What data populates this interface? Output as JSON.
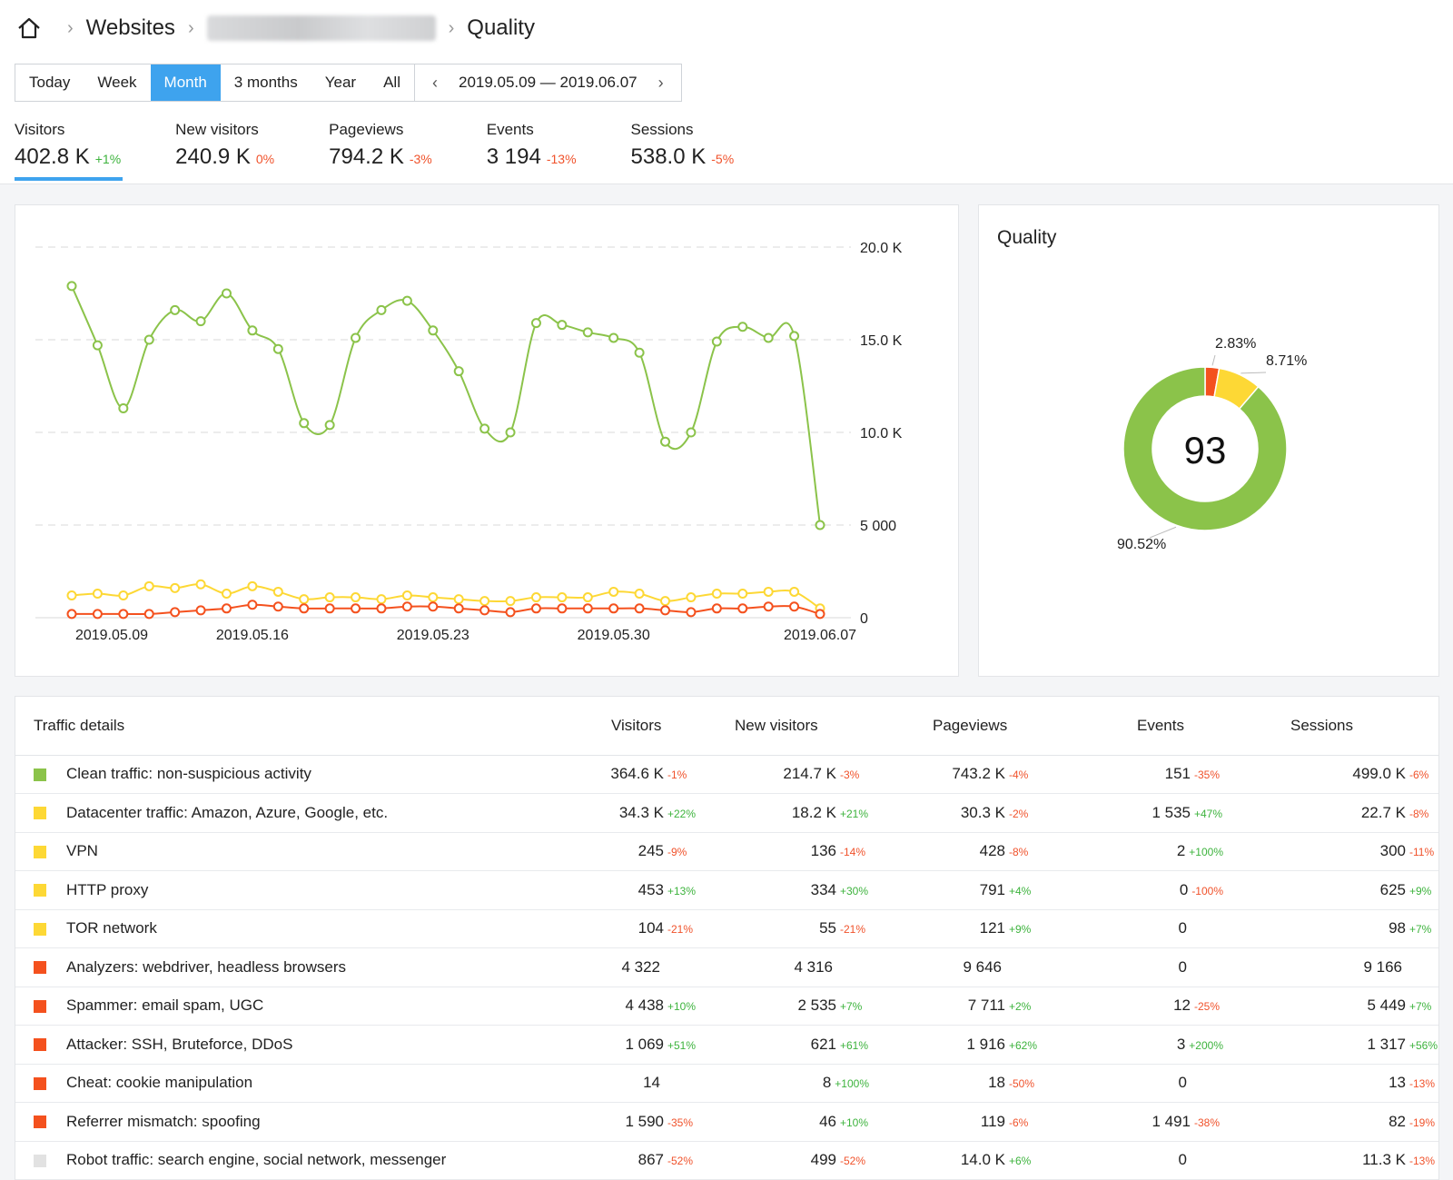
{
  "breadcrumb": {
    "websites": "Websites",
    "current": "Quality"
  },
  "periods": {
    "today": "Today",
    "week": "Week",
    "month": "Month",
    "three_months": "3 months",
    "year": "Year",
    "all": "All",
    "range": "2019.05.09 — 2019.06.07"
  },
  "metrics": [
    {
      "label": "Visitors",
      "value": "402.8 K",
      "delta": "+1%",
      "trend": "pos"
    },
    {
      "label": "New visitors",
      "value": "240.9 K",
      "delta": "0%",
      "trend": "neg"
    },
    {
      "label": "Pageviews",
      "value": "794.2 K",
      "delta": "-3%",
      "trend": "neg"
    },
    {
      "label": "Events",
      "value": "3 194",
      "delta": "-13%",
      "trend": "neg"
    },
    {
      "label": "Sessions",
      "value": "538.0 K",
      "delta": "-5%",
      "trend": "neg"
    }
  ],
  "colors": {
    "accent": "#3ea3ee",
    "green": "#8bc34a",
    "yellow": "#fdd835",
    "red": "#f4511e",
    "grey": "#e2e2e2"
  },
  "chart_data": [
    {
      "type": "line",
      "x": [
        "2019.05.09",
        "2019.05.10",
        "2019.05.11",
        "2019.05.12",
        "2019.05.13",
        "2019.05.14",
        "2019.05.15",
        "2019.05.16",
        "2019.05.17",
        "2019.05.18",
        "2019.05.19",
        "2019.05.20",
        "2019.05.21",
        "2019.05.22",
        "2019.05.23",
        "2019.05.24",
        "2019.05.25",
        "2019.05.26",
        "2019.05.27",
        "2019.05.28",
        "2019.05.29",
        "2019.05.30",
        "2019.05.31",
        "2019.06.01",
        "2019.06.02",
        "2019.06.03",
        "2019.06.04",
        "2019.06.05",
        "2019.06.06",
        "2019.06.07"
      ],
      "xticks": [
        "2019.05.09",
        "2019.05.16",
        "2019.05.23",
        "2019.05.30",
        "2019.06.07"
      ],
      "yticks": [
        "20.0 K",
        "15.0 K",
        "10.0 K",
        "5 000",
        "0"
      ],
      "ylim": [
        0,
        20000
      ],
      "series": [
        {
          "color": "#8bc34a",
          "values": [
            17900,
            14700,
            11300,
            15000,
            16600,
            16000,
            17500,
            15500,
            14500,
            10500,
            10400,
            15100,
            16600,
            17100,
            15500,
            13300,
            10200,
            10000,
            15900,
            15800,
            15400,
            15100,
            14300,
            9500,
            10000,
            14900,
            15700,
            15100,
            15200,
            5000
          ]
        },
        {
          "color": "#fdd835",
          "values": [
            1200,
            1300,
            1200,
            1700,
            1600,
            1800,
            1300,
            1700,
            1400,
            1000,
            1100,
            1100,
            1000,
            1200,
            1100,
            1000,
            900,
            900,
            1100,
            1100,
            1100,
            1400,
            1300,
            900,
            1100,
            1300,
            1300,
            1400,
            1400,
            500
          ]
        },
        {
          "color": "#f4511e",
          "values": [
            200,
            200,
            200,
            200,
            300,
            400,
            500,
            700,
            600,
            500,
            500,
            500,
            500,
            600,
            600,
            500,
            400,
            300,
            500,
            500,
            500,
            500,
            500,
            400,
            300,
            500,
            500,
            600,
            600,
            200
          ]
        }
      ]
    },
    {
      "type": "pie",
      "title": "Quality",
      "center_value": "93",
      "slices": [
        {
          "label": "2.83%",
          "value": 2.83,
          "color": "#f4511e"
        },
        {
          "label": "8.71%",
          "value": 8.71,
          "color": "#fdd835"
        },
        {
          "label": "90.52%",
          "value": 90.52,
          "color": "#8bc34a"
        }
      ]
    }
  ],
  "table": {
    "title": "Traffic details",
    "columns": [
      "Visitors",
      "New visitors",
      "Pageviews",
      "Events",
      "Sessions"
    ],
    "rows": [
      {
        "color": "#8bc34a",
        "label": "Clean traffic: non-suspicious activity",
        "cells": [
          [
            "364.6 K",
            "-1%",
            "neg"
          ],
          [
            "214.7 K",
            "-3%",
            "neg"
          ],
          [
            "743.2 K",
            "-4%",
            "neg"
          ],
          [
            "151",
            "-35%",
            "neg"
          ],
          [
            "499.0 K",
            "-6%",
            "neg"
          ]
        ]
      },
      {
        "color": "#fdd835",
        "label": "Datacenter traffic: Amazon, Azure, Google, etc.",
        "cells": [
          [
            "34.3 K",
            "+22%",
            "pos"
          ],
          [
            "18.2 K",
            "+21%",
            "pos"
          ],
          [
            "30.3 K",
            "-2%",
            "neg"
          ],
          [
            "1 535",
            "+47%",
            "pos"
          ],
          [
            "22.7 K",
            "-8%",
            "neg"
          ]
        ]
      },
      {
        "color": "#fdd835",
        "label": "VPN",
        "cells": [
          [
            "245",
            "-9%",
            "neg"
          ],
          [
            "136",
            "-14%",
            "neg"
          ],
          [
            "428",
            "-8%",
            "neg"
          ],
          [
            "2",
            "+100%",
            "pos"
          ],
          [
            "300",
            "-11%",
            "neg"
          ]
        ]
      },
      {
        "color": "#fdd835",
        "label": "HTTP proxy",
        "cells": [
          [
            "453",
            "+13%",
            "pos"
          ],
          [
            "334",
            "+30%",
            "pos"
          ],
          [
            "791",
            "+4%",
            "pos"
          ],
          [
            "0",
            "-100%",
            "neg"
          ],
          [
            "625",
            "+9%",
            "pos"
          ]
        ]
      },
      {
        "color": "#fdd835",
        "label": "TOR network",
        "cells": [
          [
            "104",
            "-21%",
            "neg"
          ],
          [
            "55",
            "-21%",
            "neg"
          ],
          [
            "121",
            "+9%",
            "pos"
          ],
          [
            "0",
            "",
            ""
          ],
          [
            "98",
            "+7%",
            "pos"
          ]
        ]
      },
      {
        "color": "#f4511e",
        "label": "Analyzers: webdriver, headless browsers",
        "cells": [
          [
            "4 322",
            "",
            ""
          ],
          [
            "4 316",
            "",
            ""
          ],
          [
            "9 646",
            "",
            ""
          ],
          [
            "0",
            "",
            ""
          ],
          [
            "9 166",
            "",
            ""
          ]
        ]
      },
      {
        "color": "#f4511e",
        "label": "Spammer: email spam, UGC",
        "cells": [
          [
            "4 438",
            "+10%",
            "pos"
          ],
          [
            "2 535",
            "+7%",
            "pos"
          ],
          [
            "7 711",
            "+2%",
            "pos"
          ],
          [
            "12",
            "-25%",
            "neg"
          ],
          [
            "5 449",
            "+7%",
            "pos"
          ]
        ]
      },
      {
        "color": "#f4511e",
        "label": "Attacker: SSH, Bruteforce, DDoS",
        "cells": [
          [
            "1 069",
            "+51%",
            "pos"
          ],
          [
            "621",
            "+61%",
            "pos"
          ],
          [
            "1 916",
            "+62%",
            "pos"
          ],
          [
            "3",
            "+200%",
            "pos"
          ],
          [
            "1 317",
            "+56%",
            "pos"
          ]
        ]
      },
      {
        "color": "#f4511e",
        "label": "Cheat: cookie manipulation",
        "cells": [
          [
            "14",
            "",
            ""
          ],
          [
            "8",
            "+100%",
            "pos"
          ],
          [
            "18",
            "-50%",
            "neg"
          ],
          [
            "0",
            "",
            ""
          ],
          [
            "13",
            "-13%",
            "neg"
          ]
        ]
      },
      {
        "color": "#f4511e",
        "label": "Referrer mismatch: spoofing",
        "cells": [
          [
            "1 590",
            "-35%",
            "neg"
          ],
          [
            "46",
            "+10%",
            "pos"
          ],
          [
            "119",
            "-6%",
            "neg"
          ],
          [
            "1 491",
            "-38%",
            "neg"
          ],
          [
            "82",
            "-19%",
            "neg"
          ]
        ]
      },
      {
        "color": "#e2e2e2",
        "label": "Robot traffic: search engine, social network, messenger",
        "cells": [
          [
            "867",
            "-52%",
            "neg"
          ],
          [
            "499",
            "-52%",
            "neg"
          ],
          [
            "14.0 K",
            "+6%",
            "pos"
          ],
          [
            "0",
            "",
            ""
          ],
          [
            "11.3 K",
            "-13%",
            "neg"
          ]
        ]
      }
    ]
  }
}
